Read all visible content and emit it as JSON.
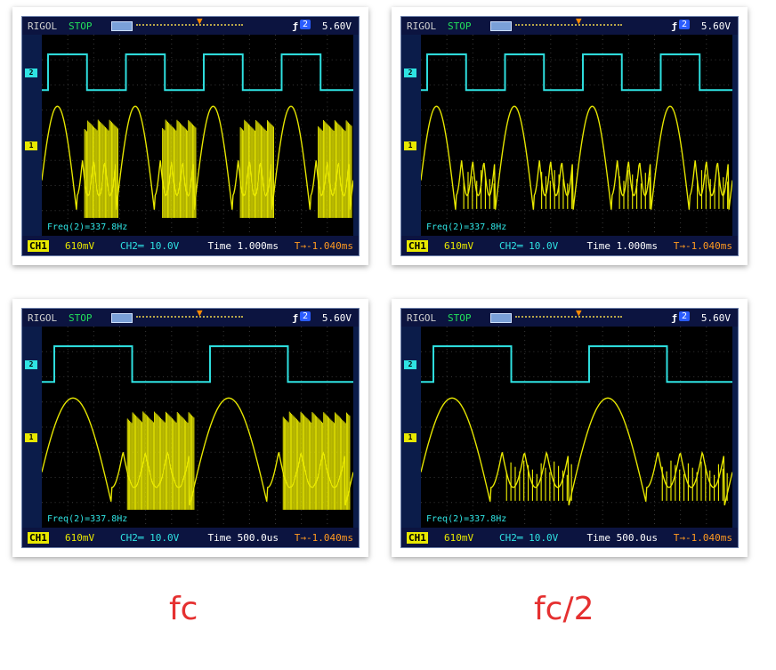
{
  "panels": [
    {
      "brand": "RIGOL",
      "status": "STOP",
      "trigger_channel": "2",
      "trigger_level": "5.60V",
      "ch1_label": "CH1",
      "ch1_scale": "610mV",
      "ch2_scale": "CH2═ 10.0V",
      "timebase": "Time 1.000ms",
      "trigger_pos": "T→-1.040ms",
      "freq": "Freq(2)=337.8Hz",
      "ch2_marker": "2",
      "ch1_marker": "1",
      "trigger_marker": "T"
    },
    {
      "brand": "RIGOL",
      "status": "STOP",
      "trigger_channel": "2",
      "trigger_level": "5.60V",
      "ch1_label": "CH1",
      "ch1_scale": "610mV",
      "ch2_scale": "CH2═ 10.0V",
      "timebase": "Time 1.000ms",
      "trigger_pos": "T→-1.040ms",
      "freq": "Freq(2)=337.8Hz",
      "ch2_marker": "2",
      "ch1_marker": "1",
      "trigger_marker": "T"
    },
    {
      "brand": "RIGOL",
      "status": "STOP",
      "trigger_channel": "2",
      "trigger_level": "5.60V",
      "ch1_label": "CH1",
      "ch1_scale": "610mV",
      "ch2_scale": "CH2═ 10.0V",
      "timebase": "Time 500.0us",
      "trigger_pos": "T→-1.040ms",
      "freq": "Freq(2)=337.8Hz",
      "ch2_marker": "2",
      "ch1_marker": "1",
      "trigger_marker": "T"
    },
    {
      "brand": "RIGOL",
      "status": "STOP",
      "trigger_channel": "2",
      "trigger_level": "5.60V",
      "ch1_label": "CH1",
      "ch1_scale": "610mV",
      "ch2_scale": "CH2═ 10.0V",
      "timebase": "Time 500.0us",
      "trigger_pos": "T→-1.040ms",
      "freq": "Freq(2)=337.8Hz",
      "ch2_marker": "2",
      "ch1_marker": "1",
      "trigger_marker": "T"
    }
  ],
  "captions": {
    "left": "fc",
    "right": "fc/2"
  },
  "colors": {
    "ch1": "#e8e800",
    "ch2": "#2fe3e3",
    "trigger": "#ff8a00",
    "caption": "#e53030"
  },
  "icons": {
    "trigger_edge": "rising-edge-icon",
    "battery": "battery-icon"
  }
}
